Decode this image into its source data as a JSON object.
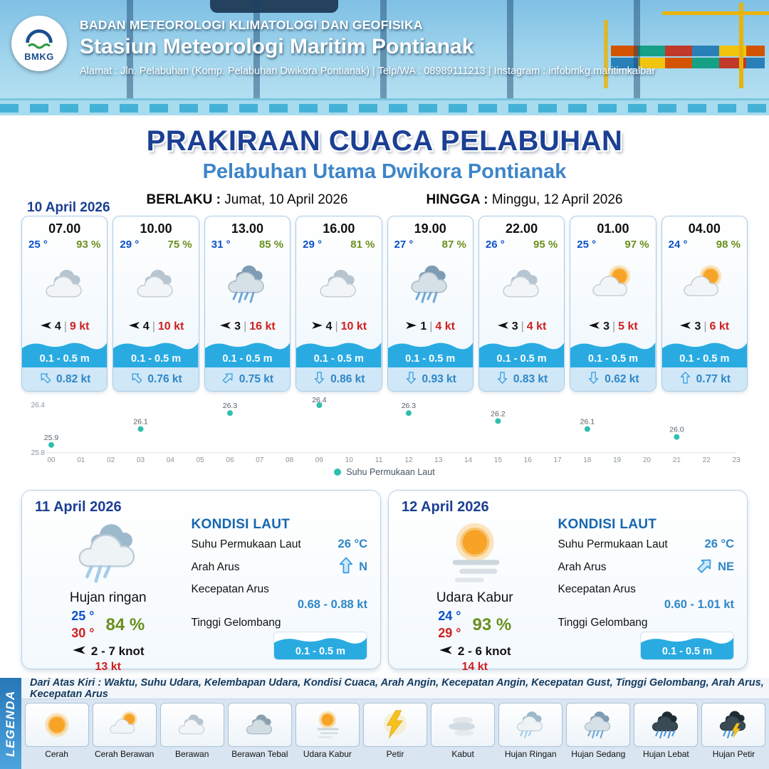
{
  "header": {
    "logo_text": "BMKG",
    "org_name": "BADAN METEOROLOGI KLIMATOLOGI DAN GEOFISIKA",
    "station_name": "Stasiun Meteorologi Maritim Pontianak",
    "address_line": "Alamat : Jln. Pelabuhan (Komp. Pelabuhan Dwikora Pontianak) | Telp/WA : 08989111213 | Instagram : infobmkg.maritimkalbar"
  },
  "title_block": {
    "title": "PRAKIRAAN CUACA PELABUHAN",
    "subtitle": "Pelabuhan Utama Dwikora Pontianak",
    "berlaku_label": "BERLAKU :",
    "berlaku_value": "Jumat, 10 April 2026",
    "hingga_label": "HINGGA :",
    "hingga_value": "Minggu, 12 April 2026"
  },
  "forecast_date": "10 April 2026",
  "hourly_cards": [
    {
      "time": "07.00",
      "temp": "25 °",
      "humidity": "93 %",
      "icon": "berawan",
      "wind_dir": "left",
      "wind_speed": "4",
      "gust": "9 kt",
      "wave_height": "0.1 - 0.5 m",
      "current_dir": "nw",
      "current_speed": "0.82 kt"
    },
    {
      "time": "10.00",
      "temp": "29 °",
      "humidity": "75 %",
      "icon": "berawan",
      "wind_dir": "left",
      "wind_speed": "4",
      "gust": "10 kt",
      "wave_height": "0.1 - 0.5 m",
      "current_dir": "nw",
      "current_speed": "0.76 kt"
    },
    {
      "time": "13.00",
      "temp": "31 °",
      "humidity": "85 %",
      "icon": "hujan-sedang",
      "wind_dir": "left",
      "wind_speed": "3",
      "gust": "16 kt",
      "wave_height": "0.1 - 0.5 m",
      "current_dir": "ne",
      "current_speed": "0.75 kt"
    },
    {
      "time": "16.00",
      "temp": "29 °",
      "humidity": "81 %",
      "icon": "berawan",
      "wind_dir": "right",
      "wind_speed": "4",
      "gust": "10 kt",
      "wave_height": "0.1 - 0.5 m",
      "current_dir": "s",
      "current_speed": "0.86 kt"
    },
    {
      "time": "19.00",
      "temp": "27 °",
      "humidity": "87 %",
      "icon": "hujan-sedang",
      "wind_dir": "right",
      "wind_speed": "1",
      "gust": "4 kt",
      "wave_height": "0.1 - 0.5 m",
      "current_dir": "s",
      "current_speed": "0.93 kt"
    },
    {
      "time": "22.00",
      "temp": "26 °",
      "humidity": "95 %",
      "icon": "berawan",
      "wind_dir": "left",
      "wind_speed": "3",
      "gust": "4 kt",
      "wave_height": "0.1 - 0.5 m",
      "current_dir": "s",
      "current_speed": "0.83 kt"
    },
    {
      "time": "01.00",
      "temp": "25 °",
      "humidity": "97 %",
      "icon": "cerah-berawan",
      "wind_dir": "left",
      "wind_speed": "3",
      "gust": "5 kt",
      "wave_height": "0.1 - 0.5 m",
      "current_dir": "s",
      "current_speed": "0.62 kt"
    },
    {
      "time": "04.00",
      "temp": "24 °",
      "humidity": "98 %",
      "icon": "cerah-berawan",
      "wind_dir": "left",
      "wind_speed": "3",
      "gust": "6 kt",
      "wave_height": "0.1 - 0.5 m",
      "current_dir": "n",
      "current_speed": "0.77 kt"
    }
  ],
  "chart_data": {
    "type": "scatter",
    "series_name": "Suhu Permukaan Laut",
    "x": [
      0,
      3,
      6,
      9,
      12,
      15,
      18,
      21
    ],
    "values": [
      25.9,
      26.1,
      26.3,
      26.4,
      26.3,
      26.2,
      26.1,
      26.0
    ],
    "x_ticks": [
      "00",
      "01",
      "02",
      "03",
      "04",
      "05",
      "06",
      "07",
      "08",
      "09",
      "10",
      "11",
      "12",
      "13",
      "14",
      "15",
      "16",
      "17",
      "18",
      "19",
      "20",
      "21",
      "22",
      "23"
    ],
    "ylim": [
      25.8,
      26.4
    ],
    "y_tick_labels": [
      "26.4",
      "25.8"
    ],
    "legend_label": "Suhu Permukaan Laut",
    "legend_position": "bottom",
    "grid": false,
    "point_color": "#2fbfae",
    "xlabel": "",
    "ylabel": ""
  },
  "day_cards": [
    {
      "date": "11 April 2026",
      "icon": "hujan-ringan",
      "condition": "Hujan ringan",
      "temp_min": "25 °",
      "temp_max": "30 °",
      "humidity": "84 %",
      "wind_dir": "left",
      "wind_range": "2 - 7 knot",
      "gust": "13 kt",
      "sea": {
        "title": "KONDISI LAUT",
        "sst_label": "Suhu Permukaan Laut",
        "sst_value": "26 °C",
        "current_dir_label": "Arah Arus",
        "current_dir": "n",
        "current_dir_text": "N",
        "current_speed_label": "Kecepatan Arus",
        "current_speed_value": "0.68 - 0.88 kt",
        "wave_label": "Tinggi Gelombang",
        "wave_value": "0.1 - 0.5 m"
      }
    },
    {
      "date": "12 April 2026",
      "icon": "udara-kabur",
      "condition": "Udara Kabur",
      "temp_min": "24 °",
      "temp_max": "29 °",
      "humidity": "93 %",
      "wind_dir": "left",
      "wind_range": "2 - 6 knot",
      "gust": "14 kt",
      "sea": {
        "title": "KONDISI LAUT",
        "sst_label": "Suhu Permukaan Laut",
        "sst_value": "26 °C",
        "current_dir_label": "Arah Arus",
        "current_dir": "ne",
        "current_dir_text": "NE",
        "current_speed_label": "Kecepatan Arus",
        "current_speed_value": "0.60 - 1.01 kt",
        "wave_label": "Tinggi Gelombang",
        "wave_value": "0.1 - 0.5 m"
      }
    }
  ],
  "legend_section": {
    "strip_label": "LEGENDA",
    "description": "Dari Atas Kiri : Waktu, Suhu Udara, Kelembapan Udara, Kondisi Cuaca, Arah Angin, Kecepatan Angin, Kecepatan Gust, Tinggi Gelombang, Arah Arus, Kecepatan Arus",
    "items": [
      {
        "icon": "cerah",
        "label": "Cerah"
      },
      {
        "icon": "cerah-berawan",
        "label": "Cerah Berawan"
      },
      {
        "icon": "berawan",
        "label": "Berawan"
      },
      {
        "icon": "berawan-tebal",
        "label": "Berawan Tebal"
      },
      {
        "icon": "udara-kabur",
        "label": "Udara Kabur"
      },
      {
        "icon": "petir",
        "label": "Petir"
      },
      {
        "icon": "kabut",
        "label": "Kabut"
      },
      {
        "icon": "hujan-ringan",
        "label": "Hujan Ringan"
      },
      {
        "icon": "hujan-sedang",
        "label": "Hujan Sedang"
      },
      {
        "icon": "hujan-lebat",
        "label": "Hujan Lebat"
      },
      {
        "icon": "hujan-petir",
        "label": "Hujan Petir"
      }
    ]
  },
  "colors": {
    "title_blue": "#1b3f93",
    "subtitle_blue": "#3d85c8",
    "temp_blue": "#0b50cc",
    "temp_red": "#d01f1f",
    "humidity_green": "#6a8f1f",
    "wave_blue": "#29abe2",
    "current_blue": "#2e86c8",
    "sst_point_teal": "#2fbfae"
  }
}
